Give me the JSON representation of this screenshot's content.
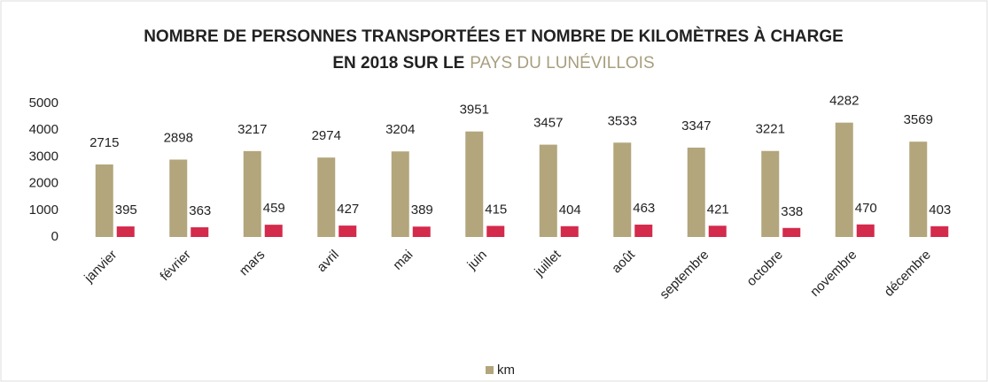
{
  "chart_data": {
    "type": "bar",
    "title": [
      "NOMBRE DE PERSONNES TRANSPORTÉES ET NOMBRE DE KILOMÈTRES À CHARGE",
      "EN 2018 SUR LE",
      "PAYS DU LUNÉVILLOIS"
    ],
    "categories": [
      "janvier",
      "février",
      "mars",
      "avril",
      "mai",
      "juin",
      "juillet",
      "août",
      "septembre",
      "octobre",
      "novembre",
      "décembre"
    ],
    "series": [
      {
        "name": "km",
        "color": "#b3a57c",
        "values": [
          2715,
          2898,
          3217,
          2974,
          3204,
          3951,
          3457,
          3533,
          3347,
          3221,
          4282,
          3569
        ]
      },
      {
        "color": "#d42a4c",
        "values": [
          395,
          363,
          459,
          427,
          389,
          415,
          404,
          463,
          421,
          338,
          470,
          403
        ]
      }
    ],
    "ylim": [
      0,
      5000
    ],
    "yticks": [
      0,
      1000,
      2000,
      3000,
      4000,
      5000
    ],
    "grid": false,
    "legend": "bottom"
  }
}
